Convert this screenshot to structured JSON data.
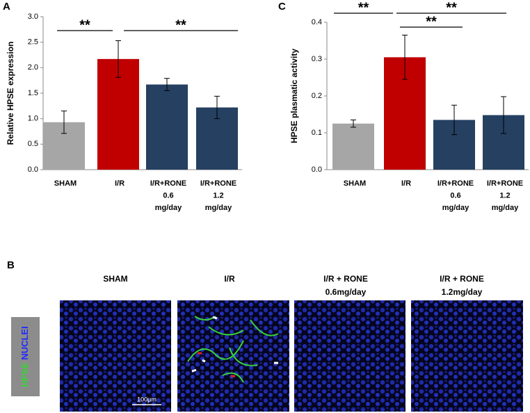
{
  "chart_data": [
    {
      "type": "bar",
      "panel": "A",
      "ylabel": "Relative HPSE expression",
      "categories": [
        [
          "SHAM"
        ],
        [
          "I/R"
        ],
        [
          "I/R+RONE",
          "0.6",
          "mg/day"
        ],
        [
          "I/R+RONE",
          "1.2",
          "mg/day"
        ]
      ],
      "values": [
        0.93,
        2.17,
        1.67,
        1.22
      ],
      "errors": [
        0.22,
        0.36,
        0.12,
        0.22
      ],
      "colors": [
        "#a6a6a6",
        "#c00000",
        "#254061",
        "#254061"
      ],
      "ylim": [
        0,
        3
      ],
      "yticks": [
        {
          "value": 0,
          "label": "0.0"
        },
        0.5,
        {
          "value": 1,
          "label": "1.0"
        },
        1.5,
        {
          "value": 2,
          "label": "2.0"
        },
        2.5,
        {
          "value": 3,
          "label": "3.0"
        }
      ],
      "annotations": [
        "**",
        "**"
      ]
    },
    {
      "type": "bar",
      "panel": "C",
      "ylabel": "HPSE plasmatic activity",
      "categories": [
        [
          "SHAM"
        ],
        [
          "I/R"
        ],
        [
          "I/R+RONE",
          "0.6",
          "mg/day"
        ],
        [
          "I/R+RONE",
          "1.2",
          "mg/day"
        ]
      ],
      "values": [
        0.125,
        0.305,
        0.135,
        0.148
      ],
      "errors": [
        0.01,
        0.06,
        0.04,
        0.05
      ],
      "colors": [
        "#a6a6a6",
        "#c00000",
        "#254061",
        "#254061"
      ],
      "ylim": [
        0,
        0.4
      ],
      "yticks": [
        {
          "value": 0,
          "label": "0.0"
        },
        0.1,
        0.2,
        0.3,
        0.4
      ],
      "annotations": [
        "**",
        "**",
        "**"
      ]
    }
  ],
  "panel_b": {
    "label": "B",
    "columns": [
      [
        "SHAM"
      ],
      [
        "I/R"
      ],
      [
        "I/R + RONE",
        "0.6mg/day"
      ],
      [
        "I/R + RONE",
        "1.2mg/day"
      ]
    ],
    "stain_label": "HPSE",
    "nuclei_label": "NUCLEI",
    "scale_bar": "100μm"
  }
}
